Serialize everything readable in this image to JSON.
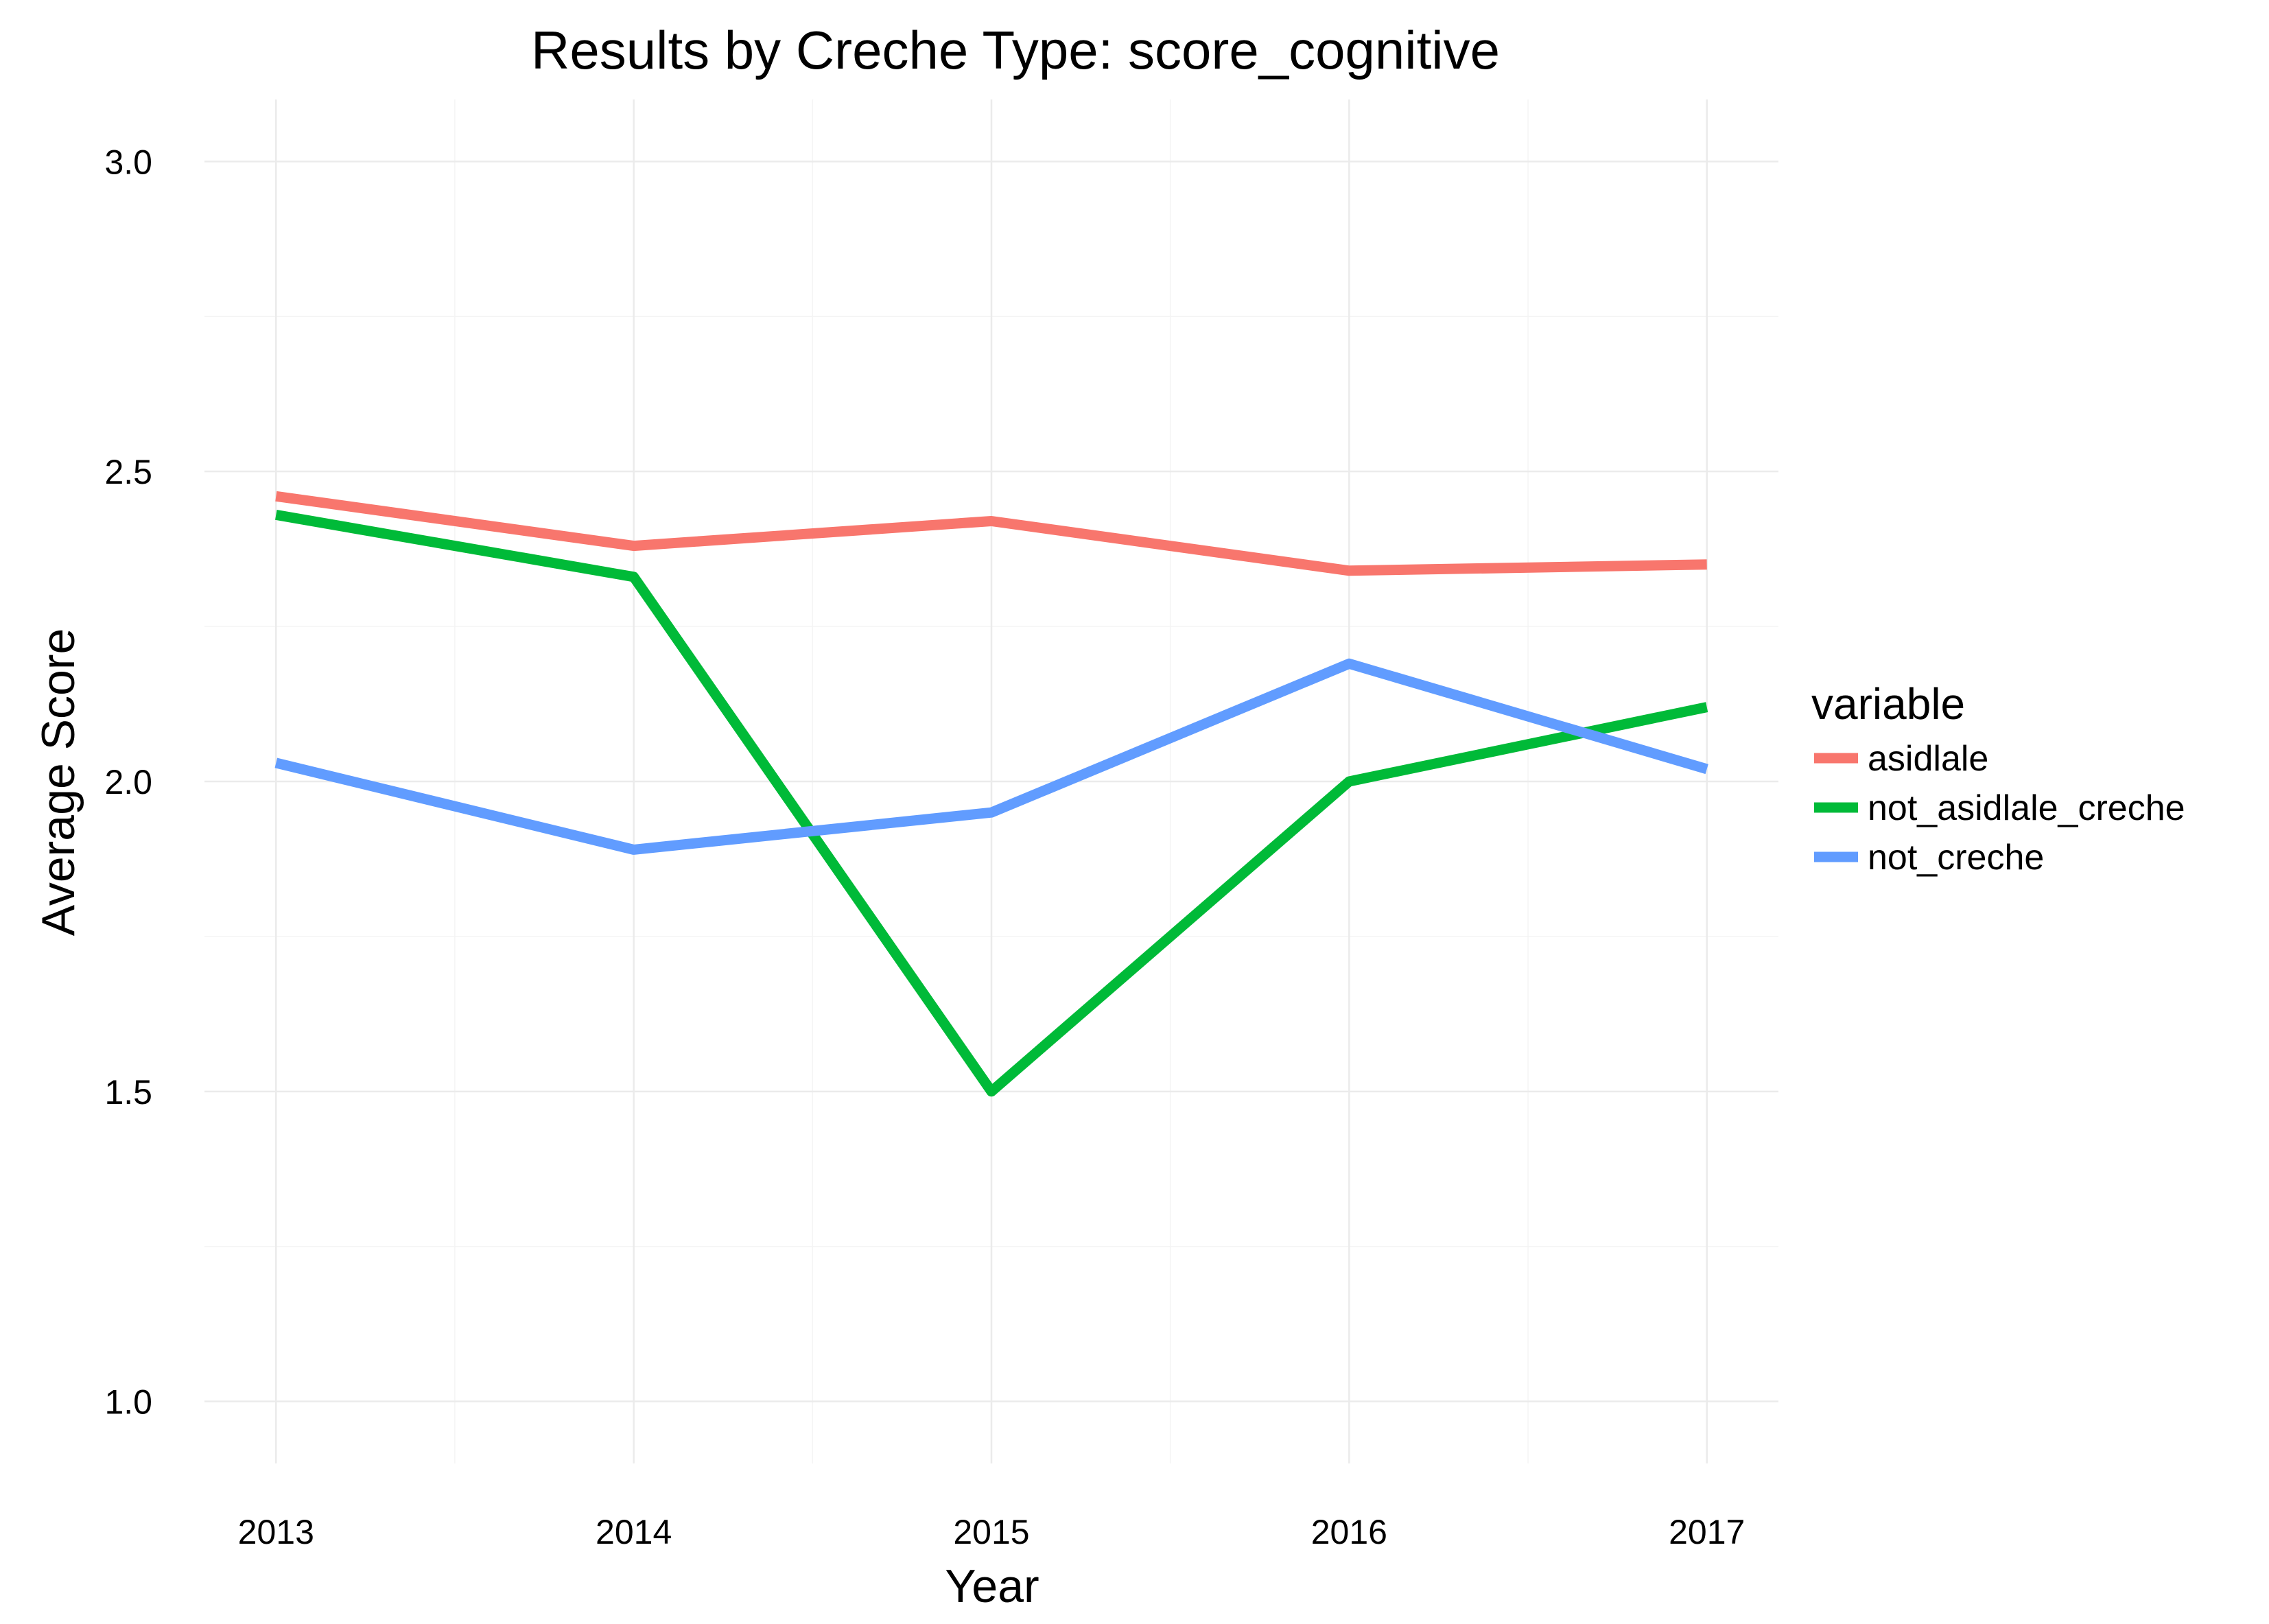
{
  "chart_data": {
    "type": "line",
    "title": "Results by Creche Type: score_cognitive",
    "xlabel": "Year",
    "ylabel": "Average Score",
    "x": [
      2013,
      2014,
      2015,
      2016,
      2017
    ],
    "x_tick_labels": [
      "2013",
      "2014",
      "2015",
      "2016",
      "2017"
    ],
    "y_ticks": [
      1.0,
      1.5,
      2.0,
      2.5,
      3.0
    ],
    "y_tick_labels": [
      "1.0",
      "1.5",
      "2.0",
      "2.5",
      "3.0"
    ],
    "xlim": [
      2012.8,
      2017.2
    ],
    "ylim": [
      0.9,
      3.1
    ],
    "grid": true,
    "legend": {
      "title": "variable",
      "position": "right"
    },
    "series": [
      {
        "name": "asidlale",
        "color": "#F8766D",
        "values": [
          2.46,
          2.38,
          2.42,
          2.34,
          2.35
        ]
      },
      {
        "name": "not_asidlale_creche",
        "color": "#00BA38",
        "values": [
          2.43,
          2.33,
          1.5,
          2.0,
          2.12
        ]
      },
      {
        "name": "not_creche",
        "color": "#619CFF",
        "values": [
          2.03,
          1.89,
          1.95,
          2.19,
          2.02
        ]
      }
    ]
  }
}
